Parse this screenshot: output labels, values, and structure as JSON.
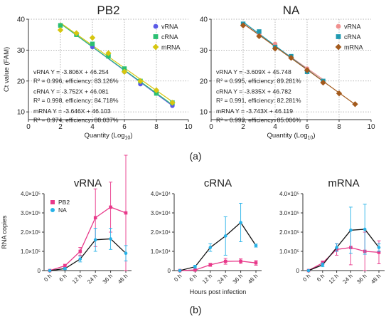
{
  "panel_labels": [
    "(a)",
    "(b)"
  ],
  "colors": {
    "vRNA_pb2": "#5a5ae6",
    "cRNA_pb2": "#2bbf73",
    "mRNA_pb2": "#d6c60f",
    "vRNA_na": "#f0908f",
    "cRNA_na": "#1f99b0",
    "mRNA_na": "#a35a1c",
    "PB2": "#e8388a",
    "NA": "#27b2e8",
    "grid": "#9a9a9a",
    "axis": "#333333"
  },
  "chart_data": [
    {
      "type": "scatter",
      "title": "PB2",
      "xlabel": "Quantity (Log",
      "xlabel_sub": "10",
      "xlabel_end": ")",
      "ylabel": "Ct value (FAM)",
      "xlim": [
        0,
        10
      ],
      "ylim": [
        7.5,
        40
      ],
      "xticks": [
        "0",
        "2",
        "4",
        "6",
        "8",
        "10"
      ],
      "yticks": [
        "10",
        "20",
        "30",
        "40"
      ],
      "legend": "top-right",
      "grid": true,
      "series": [
        {
          "name": "vRNA",
          "marker": "circle",
          "x": [
            2,
            3,
            4,
            5,
            6,
            7,
            8,
            9
          ],
          "y": [
            38.0,
            35.0,
            31.0,
            28.0,
            23.0,
            19.0,
            16.0,
            12.0
          ],
          "fit": {
            "slope": -3.806,
            "intercept": 46.254
          }
        },
        {
          "name": "cRNA",
          "marker": "square",
          "x": [
            2,
            3,
            4,
            5,
            6,
            7,
            8,
            9
          ],
          "y": [
            38.0,
            35.0,
            32.0,
            28.0,
            24.0,
            20.0,
            16.0,
            13.0
          ],
          "fit": {
            "slope": -3.752,
            "intercept": 46.081
          }
        },
        {
          "name": "mRNA",
          "marker": "diamond",
          "x": [
            2,
            3,
            4,
            5,
            6,
            7,
            8,
            9
          ],
          "y": [
            36.5,
            35.5,
            34.0,
            29.0,
            23.0,
            20.0,
            17.0,
            13.0
          ],
          "fit": {
            "slope": -3.646,
            "intercept": 46.103
          }
        }
      ],
      "equations": [
        "vRNA Y = -3.806X + 46.254",
        "R² = 0.996, efficiency: 83.126%",
        "cRNA Y = -3.752X + 46.081",
        "R² = 0.998, efficiency: 84.718%",
        "mRNA Y = -3.646X + 46.103",
        "R² = 0.974, efficiency: 88.037%"
      ]
    },
    {
      "type": "scatter",
      "title": "NA",
      "xlabel": "Quantity (Log",
      "xlabel_sub": "10",
      "xlabel_end": ")",
      "ylabel": "",
      "xlim": [
        0,
        10
      ],
      "ylim": [
        7.5,
        40
      ],
      "xticks": [
        "0",
        "2",
        "4",
        "6",
        "8",
        "10"
      ],
      "yticks": [
        "10",
        "20",
        "30",
        "40"
      ],
      "legend": "top-right",
      "grid": true,
      "series": [
        {
          "name": "vRNA",
          "marker": "circle",
          "x": [
            2,
            3,
            4,
            5,
            6,
            7
          ],
          "y": [
            38.0,
            35.0,
            32.0,
            27.5,
            24.0,
            19.5
          ],
          "fit": {
            "slope": -3.609,
            "intercept": 45.748
          }
        },
        {
          "name": "cRNA",
          "marker": "square",
          "x": [
            2,
            3,
            4,
            5,
            6,
            7
          ],
          "y": [
            38.5,
            36.0,
            31.0,
            28.0,
            23.0,
            20.0
          ],
          "fit": {
            "slope": -3.835,
            "intercept": 46.782
          }
        },
        {
          "name": "mRNA",
          "marker": "diamond",
          "x": [
            2,
            3,
            4,
            5,
            6,
            7,
            8,
            9
          ],
          "y": [
            38.0,
            34.5,
            30.5,
            27.5,
            23.5,
            19.5,
            16.0,
            12.5
          ],
          "fit": {
            "slope": -3.743,
            "intercept": 46.119
          }
        }
      ],
      "equations": [
        "vRNA Y = -3.609X + 45.748",
        "R² = 0.995, efficiency: 89.281%",
        "cRNA Y = -3.835X + 46.782",
        "R² = 0.991, efficiency: 82.281%",
        "mRNA Y = -3.743X + 46.119",
        "R² = 0.993, efficiency: 85.006%"
      ]
    },
    {
      "type": "line",
      "title": "vRNA",
      "ylabel": "RNA copies",
      "xlabel": "",
      "categories": [
        "0 h",
        "6 h",
        "12 h",
        "24 h",
        "36 h",
        "48 h"
      ],
      "ylim": [
        0,
        400000
      ],
      "yticks": [
        "0",
        "1.0×10⁵",
        "2.0×10⁵",
        "3.0×10⁵",
        "4.0×10⁵"
      ],
      "legend": "top-left",
      "series": [
        {
          "name": "PB2",
          "values": [
            0,
            25000,
            100000,
            275000,
            330000,
            300000
          ],
          "err": [
            0,
            8000,
            20000,
            150000,
            130000,
            300000
          ]
        },
        {
          "name": "NA",
          "values": [
            0,
            10000,
            60000,
            160000,
            165000,
            90000
          ],
          "err": [
            0,
            5000,
            15000,
            60000,
            55000,
            40000
          ]
        }
      ]
    },
    {
      "type": "line",
      "title": "cRNA",
      "ylabel": "",
      "xlabel": "Hours post infection",
      "categories": [
        "0 h",
        "6 h",
        "12 h",
        "24 h",
        "36 h",
        "48 h"
      ],
      "ylim": [
        0,
        40000
      ],
      "yticks": [
        "0",
        "1.0×10⁴",
        "2.0×10⁴",
        "3.0×10⁴",
        "4.0×10⁴"
      ],
      "series": [
        {
          "name": "PB2",
          "values": [
            0,
            300,
            3000,
            4800,
            4900,
            4000
          ],
          "err": [
            0,
            150,
            800,
            1500,
            1200,
            1200
          ]
        },
        {
          "name": "NA",
          "values": [
            0,
            2000,
            12000,
            18000,
            25000,
            13000
          ],
          "err": [
            0,
            800,
            2000,
            10000,
            10000,
            800
          ]
        }
      ]
    },
    {
      "type": "line",
      "title": "mRNA",
      "ylabel": "",
      "xlabel": "",
      "categories": [
        "0 h",
        "6 h",
        "12 h",
        "24 h",
        "36 h",
        "48 h"
      ],
      "ylim": [
        0,
        400000
      ],
      "yticks": [
        "0",
        "1.0×10⁵",
        "2.0×10⁵",
        "3.0×10⁵",
        "4.0×10⁵"
      ],
      "series": [
        {
          "name": "PB2",
          "values": [
            0,
            40000,
            110000,
            120000,
            100000,
            95000
          ],
          "err": [
            0,
            10000,
            30000,
            90000,
            100000,
            60000
          ]
        },
        {
          "name": "NA",
          "values": [
            0,
            30000,
            120000,
            210000,
            215000,
            120000
          ],
          "err": [
            0,
            10000,
            20000,
            120000,
            130000,
            20000
          ]
        }
      ]
    }
  ]
}
